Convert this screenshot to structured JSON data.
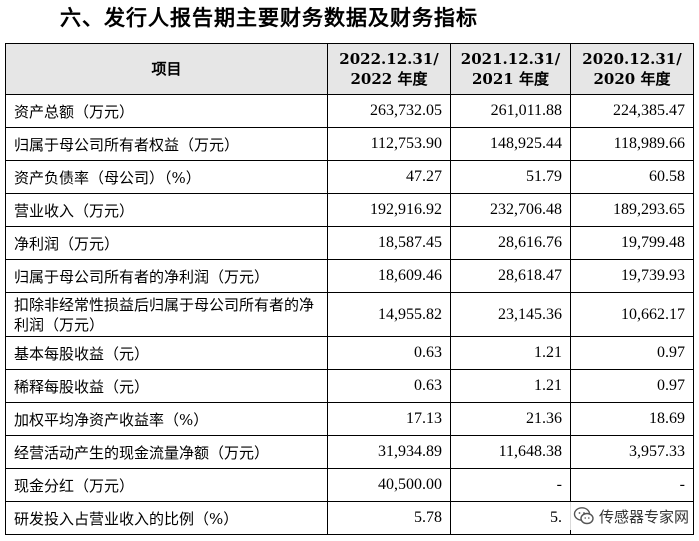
{
  "heading": "六、发行人报告期主要财务数据及财务指标",
  "table": {
    "header": {
      "item": "项目",
      "col1": "2022.12.31/ 2022 年度",
      "col2": "2021.12.31/ 2021 年度",
      "col3": "2020.12.31/ 2020 年度"
    },
    "rows": [
      {
        "label": "资产总额（万元）",
        "v1": "263,732.05",
        "v2": "261,011.88",
        "v3": "224,385.47"
      },
      {
        "label": "归属于母公司所有者权益（万元）",
        "v1": "112,753.90",
        "v2": "148,925.44",
        "v3": "118,989.66"
      },
      {
        "label": "资产负债率（母公司）（%）",
        "v1": "47.27",
        "v2": "51.79",
        "v3": "60.58"
      },
      {
        "label": "营业收入（万元）",
        "v1": "192,916.92",
        "v2": "232,706.48",
        "v3": "189,293.65"
      },
      {
        "label": "净利润（万元）",
        "v1": "18,587.45",
        "v2": "28,616.76",
        "v3": "19,799.48"
      },
      {
        "label": "归属于母公司所有者的净利润（万元）",
        "v1": "18,609.46",
        "v2": "28,618.47",
        "v3": "19,739.93"
      },
      {
        "label": "扣除非经常性损益后归属于母公司所有者的净利润（万元）",
        "v1": "14,955.82",
        "v2": "23,145.36",
        "v3": "10,662.17"
      },
      {
        "label": "基本每股收益（元）",
        "v1": "0.63",
        "v2": "1.21",
        "v3": "0.97"
      },
      {
        "label": "稀释每股收益（元）",
        "v1": "0.63",
        "v2": "1.21",
        "v3": "0.97"
      },
      {
        "label": "加权平均净资产收益率（%）",
        "v1": "17.13",
        "v2": "21.36",
        "v3": "18.69"
      },
      {
        "label": "经营活动产生的现金流量净额（万元）",
        "v1": "31,934.89",
        "v2": "11,648.38",
        "v3": "3,957.33"
      },
      {
        "label": "现金分红（万元）",
        "v1": "40,500.00",
        "v2": "-",
        "v3": "-"
      },
      {
        "label": "研发投入占营业收入的比例（%）",
        "v1": "5.78",
        "v2": "5.",
        "v3": "0"
      }
    ]
  },
  "watermark": {
    "text": "传感器专家网",
    "icon": "wechat-icon"
  }
}
